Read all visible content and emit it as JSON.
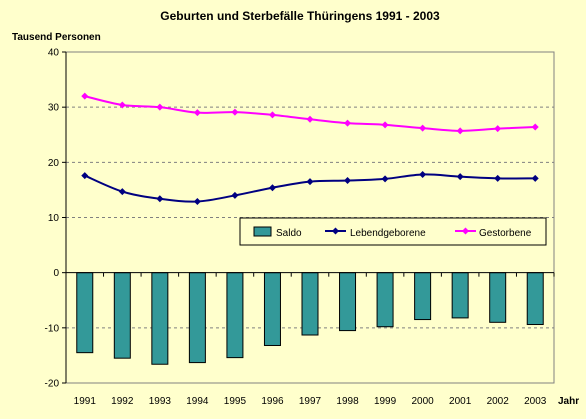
{
  "chart_data": {
    "type": "bar+line",
    "title": "Geburten und Sterbefälle Thüringens 1991 - 2003",
    "ylabel": "Tausend Personen",
    "xlabel": "Jahr",
    "ylim": [
      -20,
      40
    ],
    "yticks": [
      -20,
      -10,
      0,
      10,
      20,
      30,
      40
    ],
    "grid": "horizontal dashed",
    "legend_placement": "inside, right-center",
    "categories": [
      "1991",
      "1992",
      "1993",
      "1994",
      "1995",
      "1996",
      "1997",
      "1998",
      "1999",
      "2000",
      "2001",
      "2002",
      "2003"
    ],
    "series": [
      {
        "name": "Saldo",
        "kind": "bar",
        "color": "#339999",
        "values": [
          -14.5,
          -15.5,
          -16.6,
          -16.3,
          -15.4,
          -13.2,
          -11.3,
          -10.5,
          -9.8,
          -8.5,
          -8.2,
          -9.0,
          -9.4
        ]
      },
      {
        "name": "Lebendgeborene",
        "kind": "line",
        "color": "#000080",
        "values": [
          17.6,
          14.7,
          13.4,
          12.9,
          14.0,
          15.4,
          16.5,
          16.7,
          17.0,
          17.8,
          17.4,
          17.1,
          17.1
        ]
      },
      {
        "name": "Gestorbene",
        "kind": "line",
        "color": "#ff00ff",
        "values": [
          32.0,
          30.4,
          30.0,
          29.0,
          29.1,
          28.6,
          27.8,
          27.1,
          26.8,
          26.2,
          25.7,
          26.1,
          26.4
        ]
      }
    ]
  }
}
